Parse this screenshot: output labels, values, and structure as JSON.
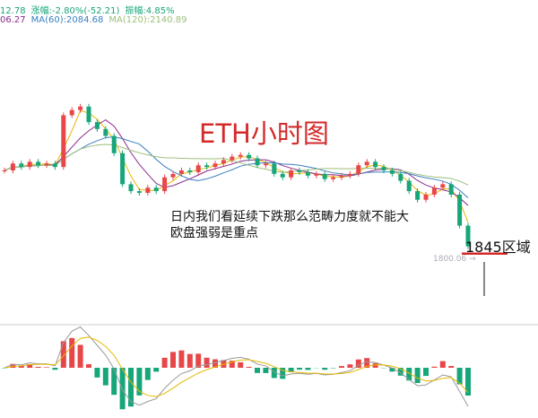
{
  "header": {
    "line1": {
      "price": "12.78",
      "change_label": "涨幅:-2.80%(-52.21)",
      "amplitude_label": "振幅:4.85%"
    },
    "line2": {
      "ma_partial": "06.27",
      "ma60": "MA(60):2084.68",
      "ma120": "MA(120):2140.89"
    }
  },
  "annotations": {
    "title": "ETH小时图",
    "note_line1": "日内我们看延续下跌那么范畴力度就不能大",
    "note_line2": "欧盘强弱是重点",
    "zone": "1845区域",
    "low_marker": "1800.06 →"
  },
  "colors": {
    "up": "#e8474a",
    "down": "#17a57a",
    "ma_short": "#e6b800",
    "ma_mid": "#8a2d8a",
    "ma60": "#3a7fc0",
    "ma120": "#9bbf7a",
    "title": "#d42a2a",
    "zone_line": "#d42a2a"
  },
  "chart_data": {
    "type": "candlestick",
    "title": "ETH小时图",
    "closes": [
      2060,
      2080,
      2070,
      2085,
      2075,
      2080,
      2070,
      2220,
      2235,
      2245,
      2200,
      2180,
      2160,
      2110,
      2020,
      2000,
      1995,
      2010,
      2000,
      2040,
      2050,
      2060,
      2055,
      2075,
      2070,
      2080,
      2090,
      2100,
      2105,
      2095,
      2075,
      2080,
      2050,
      2040,
      2060,
      2055,
      2045,
      2050,
      2035,
      2040,
      2045,
      2050,
      2075,
      2085,
      2070,
      2060,
      2050,
      2030,
      2000,
      1975,
      1990,
      2010,
      2020,
      1990,
      1900,
      1840
    ],
    "low_marked": 1800.06,
    "zone_level": 1845,
    "ma60": 2084.68,
    "ma120": 2140.89,
    "sub_chart": "MACD"
  }
}
